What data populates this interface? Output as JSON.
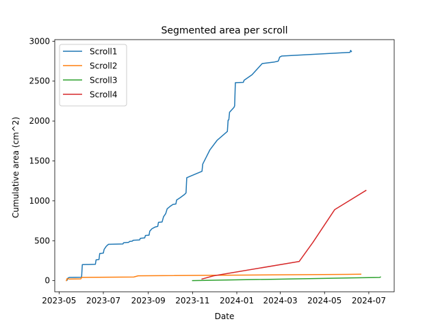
{
  "chart_data": {
    "type": "line",
    "title": "Segmented area per scroll",
    "xlabel": "Date",
    "ylabel": "Cumulative area (cm^2)",
    "x_type": "date",
    "xlim": [
      "2023-04-25",
      "2024-08-05"
    ],
    "ylim": [
      -140,
      3020
    ],
    "x_ticks": [
      {
        "value": "2023-05-01",
        "label": "2023-05"
      },
      {
        "value": "2023-07-01",
        "label": "2023-07"
      },
      {
        "value": "2023-09-01",
        "label": "2023-09"
      },
      {
        "value": "2023-11-01",
        "label": "2023-11"
      },
      {
        "value": "2024-01-01",
        "label": "2024-01"
      },
      {
        "value": "2024-03-01",
        "label": "2024-03"
      },
      {
        "value": "2024-05-01",
        "label": "2024-05"
      },
      {
        "value": "2024-07-01",
        "label": "2024-07"
      }
    ],
    "y_ticks": [
      {
        "value": 0,
        "label": "0"
      },
      {
        "value": 500,
        "label": "500"
      },
      {
        "value": 1000,
        "label": "1000"
      },
      {
        "value": 1500,
        "label": "1500"
      },
      {
        "value": 2000,
        "label": "2000"
      },
      {
        "value": 2500,
        "label": "2500"
      },
      {
        "value": 3000,
        "label": "3000"
      }
    ],
    "grid": false,
    "legend_position": "upper-left",
    "series": [
      {
        "name": "Scroll1",
        "color": "#1f77b4",
        "points": [
          [
            "2023-05-12",
            5
          ],
          [
            "2023-05-13",
            30
          ],
          [
            "2023-05-15",
            40
          ],
          [
            "2023-06-01",
            42
          ],
          [
            "2023-06-02",
            200
          ],
          [
            "2023-06-20",
            205
          ],
          [
            "2023-06-21",
            260
          ],
          [
            "2023-06-25",
            265
          ],
          [
            "2023-06-26",
            340
          ],
          [
            "2023-07-01",
            345
          ],
          [
            "2023-07-02",
            390
          ],
          [
            "2023-07-05",
            430
          ],
          [
            "2023-07-08",
            455
          ],
          [
            "2023-07-28",
            460
          ],
          [
            "2023-07-29",
            475
          ],
          [
            "2023-08-05",
            480
          ],
          [
            "2023-08-06",
            490
          ],
          [
            "2023-08-10",
            495
          ],
          [
            "2023-08-11",
            505
          ],
          [
            "2023-08-20",
            510
          ],
          [
            "2023-08-21",
            530
          ],
          [
            "2023-08-27",
            535
          ],
          [
            "2023-08-28",
            565
          ],
          [
            "2023-09-02",
            570
          ],
          [
            "2023-09-03",
            620
          ],
          [
            "2023-09-06",
            650
          ],
          [
            "2023-09-10",
            670
          ],
          [
            "2023-09-14",
            680
          ],
          [
            "2023-09-15",
            730
          ],
          [
            "2023-09-20",
            735
          ],
          [
            "2023-09-22",
            800
          ],
          [
            "2023-09-25",
            840
          ],
          [
            "2023-09-27",
            900
          ],
          [
            "2023-10-01",
            930
          ],
          [
            "2023-10-05",
            955
          ],
          [
            "2023-10-09",
            960
          ],
          [
            "2023-10-10",
            1010
          ],
          [
            "2023-10-15",
            1040
          ],
          [
            "2023-10-21",
            1080
          ],
          [
            "2023-10-23",
            1100
          ],
          [
            "2023-10-24",
            1290
          ],
          [
            "2023-11-14",
            1370
          ],
          [
            "2023-11-15",
            1460
          ],
          [
            "2023-11-20",
            1550
          ],
          [
            "2023-11-25",
            1640
          ],
          [
            "2023-12-05",
            1760
          ],
          [
            "2023-12-19",
            1870
          ],
          [
            "2023-12-20",
            2010
          ],
          [
            "2023-12-21",
            2015
          ],
          [
            "2023-12-22",
            2110
          ],
          [
            "2023-12-28",
            2170
          ],
          [
            "2023-12-29",
            2190
          ],
          [
            "2023-12-30",
            2480
          ],
          [
            "2024-01-10",
            2485
          ],
          [
            "2024-01-11",
            2510
          ],
          [
            "2024-01-22",
            2580
          ],
          [
            "2024-02-05",
            2720
          ],
          [
            "2024-02-22",
            2740
          ],
          [
            "2024-02-27",
            2750
          ],
          [
            "2024-02-28",
            2770
          ],
          [
            "2024-02-29",
            2800
          ],
          [
            "2024-03-03",
            2815
          ],
          [
            "2024-06-05",
            2860
          ],
          [
            "2024-06-06",
            2885
          ],
          [
            "2024-06-07",
            2870
          ]
        ]
      },
      {
        "name": "Scroll2",
        "color": "#ff7f0e",
        "points": [
          [
            "2023-05-11",
            0
          ],
          [
            "2023-05-12",
            25
          ],
          [
            "2023-05-15",
            20
          ],
          [
            "2023-05-31",
            22
          ],
          [
            "2023-06-01",
            40
          ],
          [
            "2023-08-12",
            45
          ],
          [
            "2023-08-18",
            60
          ],
          [
            "2024-06-20",
            80
          ]
        ]
      },
      {
        "name": "Scroll3",
        "color": "#2ca02c",
        "points": [
          [
            "2023-11-01",
            0
          ],
          [
            "2024-07-16",
            40
          ],
          [
            "2024-07-17",
            45
          ]
        ]
      },
      {
        "name": "Scroll4",
        "color": "#d62728",
        "points": [
          [
            "2023-11-14",
            20
          ],
          [
            "2023-11-30",
            60
          ],
          [
            "2024-03-27",
            240
          ],
          [
            "2024-04-15",
            480
          ],
          [
            "2024-05-15",
            890
          ],
          [
            "2024-06-27",
            1130
          ]
        ]
      }
    ]
  }
}
